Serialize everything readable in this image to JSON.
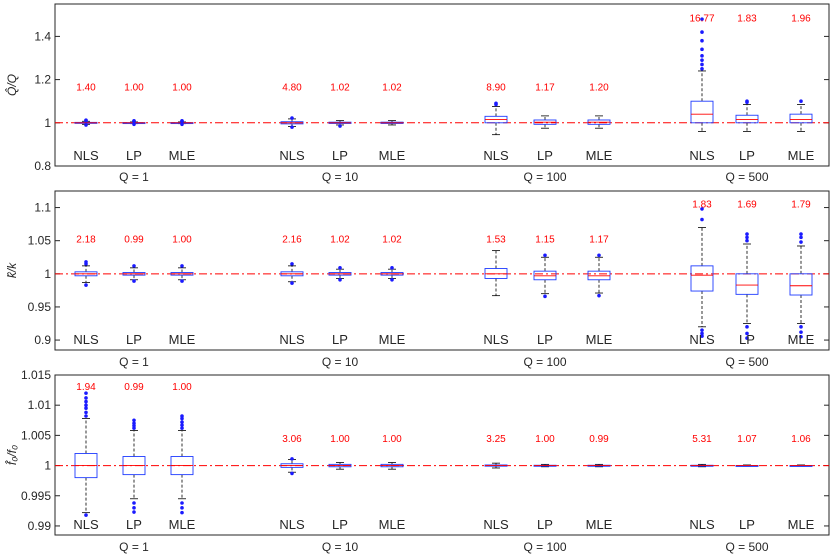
{
  "chart_data": [
    {
      "type": "box",
      "title": "",
      "ylabel": "Q̂/Q",
      "ylim": [
        0.8,
        1.55
      ],
      "yticks": [
        0.8,
        1,
        1.2,
        1.4
      ],
      "ytick_labels": [
        "0.8",
        "1",
        "1.2",
        "1.4"
      ],
      "reference_line": 1,
      "groups": [
        "Q = 1",
        "Q = 10",
        "Q = 100",
        "Q = 500"
      ],
      "methods": [
        "NLS",
        "LP",
        "MLE"
      ],
      "ratio_labels": [
        [
          "1.40",
          "1.00",
          "1.00"
        ],
        [
          "4.80",
          "1.02",
          "1.02"
        ],
        [
          "8.90",
          "1.17",
          "1.20"
        ],
        [
          "16.77",
          "1.83",
          "1.96"
        ]
      ],
      "ratio_y": [
        1.15,
        1.15,
        1.15,
        1.47
      ],
      "boxes": [
        [
          {
            "q1": 0.998,
            "med": 1.0,
            "q3": 1.002,
            "wlo": 0.993,
            "whi": 1.007,
            "outliers": [
              1.01,
              0.99,
              1.012
            ]
          },
          {
            "q1": 0.999,
            "med": 1.0,
            "q3": 1.001,
            "wlo": 0.996,
            "whi": 1.004,
            "outliers": [
              1.007,
              0.993,
              1.009
            ]
          },
          {
            "q1": 0.999,
            "med": 1.0,
            "q3": 1.001,
            "wlo": 0.996,
            "whi": 1.004,
            "outliers": [
              1.007,
              0.993,
              1.009
            ]
          }
        ],
        [
          {
            "q1": 0.995,
            "med": 1.0,
            "q3": 1.005,
            "wlo": 0.983,
            "whi": 1.018,
            "outliers": [
              1.022,
              0.98
            ]
          },
          {
            "q1": 0.997,
            "med": 1.0,
            "q3": 1.003,
            "wlo": 0.99,
            "whi": 1.01,
            "outliers": [
              0.985
            ]
          },
          {
            "q1": 0.997,
            "med": 1.0,
            "q3": 1.003,
            "wlo": 0.99,
            "whi": 1.01,
            "outliers": []
          }
        ],
        [
          {
            "q1": 1.0,
            "med": 1.015,
            "q3": 1.03,
            "wlo": 0.945,
            "whi": 1.075,
            "outliers": [
              1.085,
              1.09
            ]
          },
          {
            "q1": 0.993,
            "med": 1.003,
            "q3": 1.013,
            "wlo": 0.975,
            "whi": 1.032,
            "outliers": []
          },
          {
            "q1": 0.993,
            "med": 1.003,
            "q3": 1.013,
            "wlo": 0.975,
            "whi": 1.032,
            "outliers": []
          }
        ],
        [
          {
            "q1": 1.0,
            "med": 1.04,
            "q3": 1.1,
            "wlo": 0.96,
            "whi": 1.24,
            "outliers": [
              1.25,
              1.27,
              1.29,
              1.31,
              1.34,
              1.38,
              1.42,
              1.48
            ]
          },
          {
            "q1": 1.0,
            "med": 1.015,
            "q3": 1.035,
            "wlo": 0.96,
            "whi": 1.085,
            "outliers": [
              1.095,
              1.1
            ]
          },
          {
            "q1": 1.0,
            "med": 1.015,
            "q3": 1.04,
            "wlo": 0.96,
            "whi": 1.085,
            "outliers": [
              1.1
            ]
          }
        ]
      ]
    },
    {
      "type": "box",
      "title": "",
      "ylabel": "k̂/k",
      "ylim": [
        0.885,
        1.125
      ],
      "yticks": [
        0.9,
        0.95,
        1,
        1.05,
        1.1
      ],
      "ytick_labels": [
        "0.9",
        "0.95",
        "1",
        "1.05",
        "1.1"
      ],
      "reference_line": 1,
      "groups": [
        "Q = 1",
        "Q = 10",
        "Q = 100",
        "Q = 500"
      ],
      "methods": [
        "NLS",
        "LP",
        "MLE"
      ],
      "ratio_labels": [
        [
          "2.18",
          "0.99",
          "1.00"
        ],
        [
          "2.16",
          "1.02",
          "1.02"
        ],
        [
          "1.53",
          "1.15",
          "1.17"
        ],
        [
          "1.83",
          "1.69",
          "1.79"
        ]
      ],
      "ratio_y": [
        1.047,
        1.047,
        1.047,
        1.1
      ],
      "boxes": [
        [
          {
            "q1": 0.997,
            "med": 1.0,
            "q3": 1.003,
            "wlo": 0.987,
            "whi": 1.012,
            "outliers": [
              1.015,
              1.018,
              0.983
            ]
          },
          {
            "q1": 0.998,
            "med": 1.0,
            "q3": 1.002,
            "wlo": 0.991,
            "whi": 1.009,
            "outliers": [
              1.012,
              0.989
            ]
          },
          {
            "q1": 0.998,
            "med": 1.0,
            "q3": 1.002,
            "wlo": 0.991,
            "whi": 1.009,
            "outliers": [
              1.012,
              0.989
            ]
          }
        ],
        [
          {
            "q1": 0.997,
            "med": 1.0,
            "q3": 1.003,
            "wlo": 0.988,
            "whi": 1.012,
            "outliers": [
              1.015,
              0.986
            ]
          },
          {
            "q1": 0.998,
            "med": 1.0,
            "q3": 1.002,
            "wlo": 0.993,
            "whi": 1.007,
            "outliers": [
              1.009,
              0.991
            ]
          },
          {
            "q1": 0.998,
            "med": 1.0,
            "q3": 1.002,
            "wlo": 0.993,
            "whi": 1.007,
            "outliers": [
              1.009,
              0.991
            ]
          }
        ],
        [
          {
            "q1": 0.993,
            "med": 1.0,
            "q3": 1.008,
            "wlo": 0.967,
            "whi": 1.035,
            "outliers": []
          },
          {
            "q1": 0.991,
            "med": 0.997,
            "q3": 1.004,
            "wlo": 0.97,
            "whi": 1.025,
            "outliers": [
              0.966,
              1.028
            ]
          },
          {
            "q1": 0.991,
            "med": 0.997,
            "q3": 1.004,
            "wlo": 0.971,
            "whi": 1.025,
            "outliers": [
              0.967,
              1.028
            ]
          }
        ],
        [
          {
            "q1": 0.974,
            "med": 0.998,
            "q3": 1.012,
            "wlo": 0.92,
            "whi": 1.07,
            "outliers": [
              1.082,
              1.098,
              0.915,
              0.91,
              0.906
            ]
          },
          {
            "q1": 0.969,
            "med": 0.983,
            "q3": 1.0,
            "wlo": 0.925,
            "whi": 1.045,
            "outliers": [
              1.05,
              1.055,
              1.06,
              0.92,
              0.91,
              0.903
            ]
          },
          {
            "q1": 0.968,
            "med": 0.982,
            "q3": 1.0,
            "wlo": 0.925,
            "whi": 1.042,
            "outliers": [
              1.048,
              1.055,
              1.06,
              0.92,
              0.912,
              0.905
            ]
          }
        ]
      ]
    },
    {
      "type": "box",
      "title": "",
      "ylabel": "f̂₀/f₀",
      "ylim": [
        0.9885,
        1.015
      ],
      "yticks": [
        0.99,
        0.995,
        1,
        1.005,
        1.01,
        1.015
      ],
      "ytick_labels": [
        "0.99",
        "0.995",
        "1",
        "1.005",
        "1.01",
        "1.015"
      ],
      "reference_line": 1,
      "groups": [
        "Q = 1",
        "Q = 10",
        "Q = 100",
        "Q = 500"
      ],
      "methods": [
        "NLS",
        "LP",
        "MLE"
      ],
      "ratio_labels": [
        [
          "1.94",
          "0.99",
          "1.00"
        ],
        [
          "3.06",
          "1.00",
          "1.00"
        ],
        [
          "3.25",
          "1.00",
          "0.99"
        ],
        [
          "5.31",
          "1.07",
          "1.06"
        ]
      ],
      "ratio_y": [
        1.0125,
        1.0039,
        1.0039,
        1.0039
      ],
      "boxes": [
        [
          {
            "q1": 0.998,
            "med": 1.0,
            "q3": 1.002,
            "wlo": 0.9922,
            "whi": 1.0078,
            "outliers": [
              1.0082,
              1.0088,
              1.0095,
              1.01,
              1.0106,
              1.0112,
              1.012,
              0.9918
            ]
          },
          {
            "q1": 0.9985,
            "med": 1.0,
            "q3": 1.0015,
            "wlo": 0.9945,
            "whi": 1.0058,
            "outliers": [
              1.0062,
              1.0066,
              1.007,
              1.0075,
              0.9938,
              0.993,
              0.9923
            ]
          },
          {
            "q1": 0.9985,
            "med": 1.0,
            "q3": 1.0015,
            "wlo": 0.9945,
            "whi": 1.0058,
            "outliers": [
              1.0062,
              1.0067,
              1.0072,
              1.0078,
              1.0082,
              0.9938,
              0.993,
              0.9922
            ]
          }
        ],
        [
          {
            "q1": 0.9997,
            "med": 1.0,
            "q3": 1.0003,
            "wlo": 0.9989,
            "whi": 1.001,
            "outliers": [
              0.9987,
              1.0011
            ]
          },
          {
            "q1": 0.9998,
            "med": 1.0,
            "q3": 1.0002,
            "wlo": 0.9994,
            "whi": 1.0005,
            "outliers": []
          },
          {
            "q1": 0.9998,
            "med": 1.0,
            "q3": 1.0002,
            "wlo": 0.9994,
            "whi": 1.0005,
            "outliers": []
          }
        ],
        [
          {
            "q1": 0.9999,
            "med": 1.0,
            "q3": 1.0001,
            "wlo": 0.9996,
            "whi": 1.0004,
            "outliers": []
          },
          {
            "q1": 0.99995,
            "med": 1.0,
            "q3": 1.00005,
            "wlo": 0.9998,
            "whi": 1.0002,
            "outliers": []
          },
          {
            "q1": 0.99995,
            "med": 1.0,
            "q3": 1.00005,
            "wlo": 0.9998,
            "whi": 1.0002,
            "outliers": []
          }
        ],
        [
          {
            "q1": 0.99995,
            "med": 1.0,
            "q3": 1.00005,
            "wlo": 0.9998,
            "whi": 1.0002,
            "outliers": []
          },
          {
            "q1": 0.99998,
            "med": 1.0,
            "q3": 1.00002,
            "wlo": 0.9999,
            "whi": 1.0001,
            "outliers": []
          },
          {
            "q1": 0.99998,
            "med": 1.0,
            "q3": 1.00002,
            "wlo": 0.9999,
            "whi": 1.0001,
            "outliers": []
          }
        ]
      ]
    }
  ]
}
